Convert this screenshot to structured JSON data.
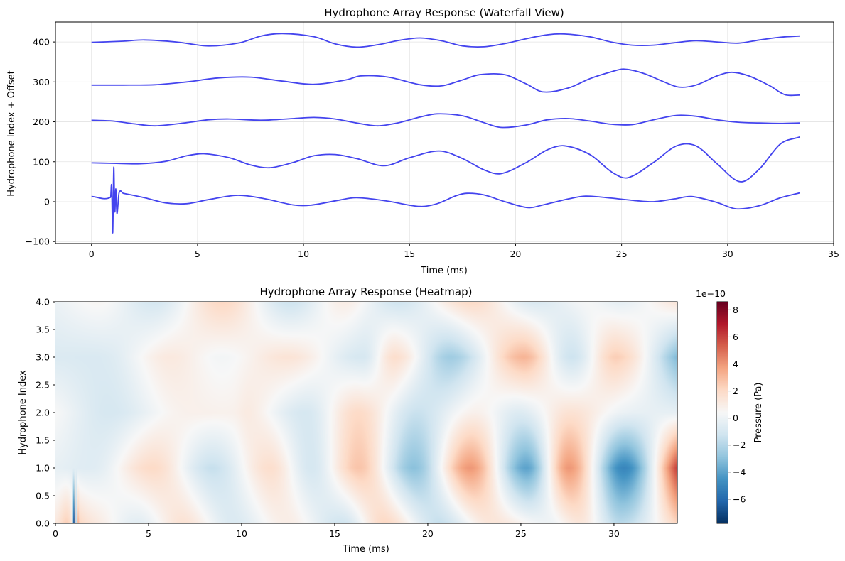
{
  "chart_data": [
    {
      "type": "line",
      "title": "Hydrophone Array Response (Waterfall View)",
      "xlabel": "Time (ms)",
      "ylabel": "Hydrophone Index + Offset",
      "xlim": [
        -1.7,
        35.0
      ],
      "ylim": [
        -105,
        450
      ],
      "xticks": [
        0,
        5,
        10,
        15,
        20,
        25,
        30,
        35
      ],
      "yticks": [
        -100,
        0,
        100,
        200,
        300,
        400
      ],
      "grid": true,
      "line_color": "#4444ee",
      "series": [
        {
          "offset": 0,
          "x": [
            0,
            0.9,
            0.95,
            1.0,
            1.05,
            1.1,
            1.15,
            1.2,
            1.3,
            1.5,
            2.5,
            3.5,
            4.5,
            5.5,
            6.9,
            8.2,
            9.5,
            10.3,
            11.5,
            12.5,
            14.0,
            15.5,
            16.3,
            17.2,
            17.7,
            18.5,
            19.5,
            20.6,
            21.3,
            22.5,
            23.3,
            24.5,
            25.6,
            26.5,
            27.5,
            28.3,
            29.5,
            30.4,
            31.5,
            32.5,
            33.4
          ],
          "y": [
            13,
            11,
            40,
            -78,
            86,
            -25,
            32,
            -30,
            22,
            21,
            10,
            -3,
            -5,
            5,
            16,
            7,
            -8,
            -9,
            2,
            10,
            1,
            -12,
            -5,
            15,
            21,
            17,
            0,
            -15,
            -8,
            7,
            14,
            9,
            3,
            0,
            7,
            13,
            -2,
            -18,
            -10,
            10,
            22
          ]
        },
        {
          "offset": 100,
          "x": [
            0,
            1.0,
            2.3,
            3.5,
            4.5,
            5.3,
            6.5,
            7.5,
            8.4,
            9.5,
            10.5,
            11.5,
            12.5,
            13.8,
            15.0,
            16.4,
            17.5,
            18.5,
            19.3,
            20.5,
            21.5,
            22.3,
            23.5,
            24.6,
            25.3,
            26.5,
            27.6,
            28.5,
            29.5,
            30.6,
            31.5,
            32.5,
            33.4
          ],
          "y": [
            97,
            96,
            95,
            101,
            115,
            120,
            110,
            92,
            85,
            98,
            115,
            118,
            108,
            90,
            110,
            127,
            108,
            80,
            70,
            98,
            130,
            140,
            118,
            72,
            60,
            98,
            140,
            140,
            95,
            50,
            82,
            145,
            162
          ]
        },
        {
          "offset": 200,
          "x": [
            0,
            1.0,
            2.0,
            3.0,
            4.5,
            5.5,
            6.5,
            8.0,
            9.5,
            10.5,
            11.5,
            12.5,
            13.5,
            14.5,
            15.5,
            16.3,
            17.5,
            18.5,
            19.3,
            20.5,
            21.5,
            22.5,
            23.5,
            24.5,
            25.5,
            26.5,
            27.6,
            28.5,
            29.5,
            30.5,
            31.5,
            32.5,
            33.4
          ],
          "y": [
            204,
            202,
            195,
            190,
            198,
            205,
            207,
            204,
            208,
            211,
            207,
            197,
            190,
            198,
            212,
            220,
            215,
            198,
            186,
            192,
            205,
            208,
            202,
            194,
            193,
            205,
            216,
            214,
            205,
            199,
            197,
            196,
            197
          ]
        },
        {
          "offset": 300,
          "x": [
            0,
            1.5,
            3.0,
            4.5,
            6.0,
            7.5,
            9.0,
            10.5,
            12.0,
            12.7,
            14.0,
            15.5,
            16.5,
            17.5,
            18.3,
            19.5,
            20.5,
            21.3,
            22.5,
            23.5,
            24.5,
            25.1,
            26.0,
            27.0,
            27.7,
            28.5,
            29.5,
            30.2,
            31.0,
            32.0,
            32.7,
            33.4
          ],
          "y": [
            292,
            292,
            293,
            300,
            310,
            312,
            302,
            294,
            305,
            315,
            312,
            293,
            290,
            305,
            318,
            318,
            295,
            275,
            285,
            308,
            325,
            332,
            322,
            300,
            287,
            292,
            315,
            324,
            315,
            290,
            268,
            267
          ]
        },
        {
          "offset": 400,
          "x": [
            0,
            1.5,
            2.5,
            4.0,
            5.5,
            7.0,
            8.0,
            9.0,
            10.5,
            11.5,
            12.5,
            13.5,
            14.5,
            15.5,
            16.5,
            17.5,
            18.5,
            19.5,
            20.5,
            21.5,
            22.3,
            23.5,
            24.5,
            25.5,
            26.5,
            27.5,
            28.5,
            29.5,
            30.5,
            31.5,
            32.5,
            33.4
          ],
          "y": [
            399,
            402,
            405,
            400,
            390,
            398,
            415,
            421,
            413,
            395,
            387,
            393,
            404,
            410,
            403,
            390,
            388,
            396,
            408,
            418,
            420,
            413,
            400,
            392,
            392,
            398,
            403,
            400,
            397,
            405,
            412,
            415
          ]
        }
      ]
    },
    {
      "type": "heatmap",
      "title": "Hydrophone Array Response (Heatmap)",
      "xlabel": "Time (ms)",
      "ylabel": "Hydrophone Index",
      "xlim": [
        0,
        33.4
      ],
      "ylim": [
        0,
        4.0
      ],
      "xticks": [
        0,
        5,
        10,
        15,
        20,
        25,
        30
      ],
      "yticks": [
        0.0,
        0.5,
        1.0,
        1.5,
        2.0,
        2.5,
        3.0,
        3.5,
        4.0
      ],
      "rows": [
        {
          "hydrophone": 0,
          "x": [
            0,
            0.9,
            1.0,
            1.05,
            1.1,
            1.2,
            1.3,
            2.5,
            4.5,
            6.9,
            9.5,
            12.5,
            15.5,
            17.7,
            20.6,
            23.3,
            26.5,
            28.3,
            30.4,
            33.4
          ],
          "y": [
            1.3,
            1.1,
            -7.8,
            8.6,
            -2.5,
            3.2,
            2.2,
            1.0,
            -0.5,
            1.6,
            -0.8,
            1.0,
            -1.2,
            2.1,
            -1.5,
            1.4,
            0.0,
            1.3,
            -1.8,
            2.2
          ]
        },
        {
          "hydrophone": 1,
          "x": [
            0,
            2.3,
            5.3,
            8.4,
            11.5,
            13.8,
            16.4,
            19.3,
            22.3,
            25.3,
            27.6,
            30.6,
            33.4
          ],
          "y": [
            -0.3,
            -0.5,
            2.0,
            -1.5,
            1.8,
            -1.0,
            2.7,
            -3.0,
            4.0,
            -4.0,
            4.0,
            -5.0,
            6.2
          ]
        },
        {
          "hydrophone": 2,
          "x": [
            0,
            3.0,
            6.5,
            9.5,
            10.5,
            13.5,
            16.3,
            19.3,
            22.5,
            25.0,
            27.6,
            30.5,
            33.4
          ],
          "y": [
            0.4,
            -1.0,
            0.7,
            0.8,
            1.1,
            -1.0,
            2.0,
            -1.4,
            0.8,
            -0.7,
            1.6,
            -0.1,
            -0.3
          ]
        },
        {
          "hydrophone": 3,
          "x": [
            0,
            3.0,
            6.0,
            9.0,
            12.7,
            16.5,
            18.3,
            21.3,
            25.1,
            27.7,
            30.2,
            33.4
          ],
          "y": [
            -0.8,
            -0.7,
            1.2,
            0.2,
            1.5,
            -1.0,
            1.8,
            -2.5,
            3.2,
            -1.3,
            2.4,
            -3.3
          ]
        },
        {
          "hydrophone": 4,
          "x": [
            0,
            2.5,
            5.5,
            9.0,
            12.5,
            15.5,
            18.5,
            22.3,
            25.5,
            28.5,
            30.5,
            33.4
          ],
          "y": [
            -0.1,
            0.5,
            -1.0,
            2.1,
            -1.3,
            1.0,
            -1.2,
            2.0,
            -0.8,
            0.3,
            -0.3,
            1.5
          ]
        }
      ],
      "colorbar": {
        "label": "Pressure (Pa)",
        "multiplier": "1e−10",
        "vmin": -7.8,
        "vmax": 8.6,
        "ticks": [
          -6,
          -4,
          -2,
          0,
          2,
          4,
          6,
          8
        ],
        "colormap": "RdBu_r"
      }
    }
  ]
}
